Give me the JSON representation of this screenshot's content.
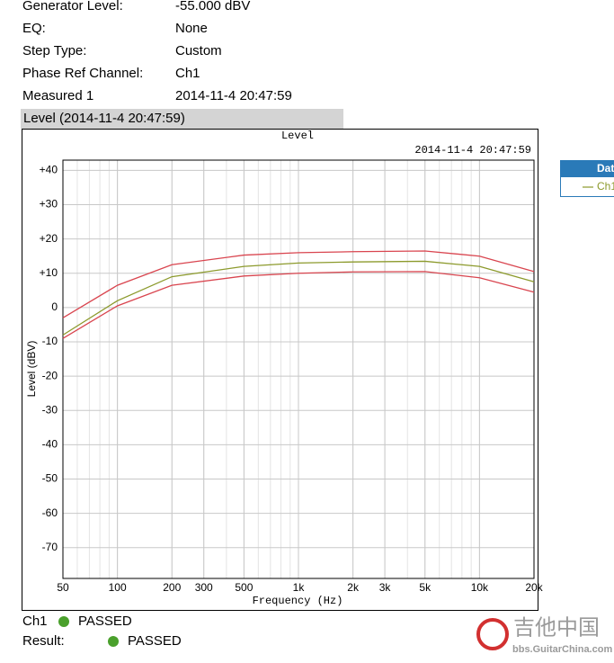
{
  "info": [
    {
      "label": "Generator Level:",
      "value": "-55.000 dBV"
    },
    {
      "label": "EQ:",
      "value": "None"
    },
    {
      "label": "Step Type:",
      "value": "Custom"
    },
    {
      "label": "Phase Ref Channel:",
      "value": "Ch1"
    },
    {
      "label": "Measured 1",
      "value": "2014-11-4 20:47:59"
    }
  ],
  "section_title": "Level (2014-11-4 20:47:59)",
  "chart_data": {
    "type": "line",
    "title": "Level",
    "subtitle": "2014-11-4 20:47:59",
    "x_label": "Frequency (Hz)",
    "y_label": "Level (dBV)",
    "x_log": true,
    "grid": true,
    "x": [
      50,
      100,
      200,
      500,
      1000,
      2000,
      5000,
      10000,
      20000
    ],
    "xlim": [
      50,
      20000
    ],
    "xticks": [
      50,
      100,
      200,
      300,
      500,
      {
        "value": 1000,
        "label": "1k"
      },
      {
        "value": 2000,
        "label": "2k"
      },
      {
        "value": 3000,
        "label": "3k"
      },
      {
        "value": 5000,
        "label": "5k"
      },
      {
        "value": 10000,
        "label": "10k"
      },
      {
        "value": 20000,
        "label": "20k"
      }
    ],
    "ylim": [
      -79,
      43
    ],
    "yticks": [
      {
        "value": 40,
        "label": "+40"
      },
      {
        "value": 30,
        "label": "+30"
      },
      {
        "value": 20,
        "label": "+20"
      },
      {
        "value": 10,
        "label": "+10"
      },
      0,
      -10,
      -20,
      -30,
      -40,
      -50,
      -60,
      -70
    ],
    "legend_title": "Data",
    "series": [
      {
        "name": "Ch1",
        "color": "#8c9a2c",
        "values": [
          -8,
          2,
          9,
          12,
          13,
          13.3,
          13.5,
          12,
          7.5
        ]
      },
      {
        "color": "#d9454f",
        "values": [
          -3,
          6.5,
          12.5,
          15.3,
          16,
          16.3,
          16.5,
          15,
          10.5
        ]
      },
      {
        "color": "#d9454f",
        "values": [
          -9,
          0.5,
          6.5,
          9.2,
          10,
          10.4,
          10.5,
          8.7,
          4.5
        ]
      }
    ]
  },
  "status": {
    "channel": "Ch1",
    "channel_result": "PASSED",
    "label": "Result:",
    "result": "PASSED"
  },
  "watermark": {
    "title": "吉他中国",
    "url": "bbs.GuitarChina.com"
  }
}
